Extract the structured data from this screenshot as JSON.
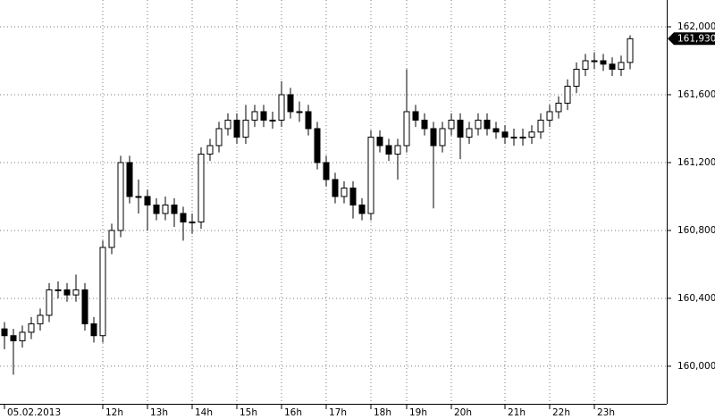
{
  "chart_data": {
    "type": "candlestick",
    "categories": [
      "05.02.2013",
      null,
      null,
      null,
      null,
      null,
      null,
      null,
      null,
      null,
      null,
      "12h",
      null,
      null,
      null,
      null,
      "13h",
      null,
      null,
      null,
      null,
      "14h",
      null,
      null,
      null,
      null,
      "15h",
      null,
      null,
      null,
      null,
      "16h",
      null,
      null,
      null,
      null,
      "17h",
      null,
      null,
      null,
      null,
      "18h",
      null,
      null,
      null,
      "19h",
      null,
      null,
      null,
      null,
      "20h",
      null,
      null,
      null,
      null,
      null,
      "21h",
      null,
      null,
      null,
      null,
      "22h",
      null,
      null,
      null,
      null,
      "23h",
      null,
      null,
      null,
      null
    ],
    "open": [
      160220,
      160180,
      160150,
      160200,
      160250,
      160300,
      160450,
      160450,
      160420,
      160450,
      160250,
      160180,
      160700,
      160800,
      161200,
      161000,
      161000,
      160950,
      160900,
      160950,
      160900,
      160850,
      160850,
      161250,
      161300,
      161400,
      161450,
      161350,
      161450,
      161500,
      161450,
      161450,
      161600,
      161500,
      161500,
      161400,
      161200,
      161100,
      161000,
      161050,
      160950,
      160900,
      161350,
      161300,
      161250,
      161300,
      161500,
      161450,
      161400,
      161300,
      161400,
      161450,
      161350,
      161400,
      161450,
      161400,
      161380,
      161350,
      161350,
      161350,
      161380,
      161450,
      161500,
      161550,
      161650,
      161750,
      161800,
      161800,
      161780,
      161750,
      161790
    ],
    "high": [
      160260,
      160220,
      160240,
      160290,
      160340,
      160490,
      160500,
      160490,
      160540,
      160490,
      160290,
      160740,
      160840,
      161240,
      161240,
      161100,
      161040,
      160990,
      161000,
      160990,
      160940,
      160900,
      161290,
      161340,
      161440,
      161490,
      161490,
      161540,
      161540,
      161540,
      161500,
      161680,
      161640,
      161560,
      161540,
      161440,
      161240,
      161140,
      161090,
      161090,
      160990,
      161390,
      161390,
      161340,
      161340,
      161750,
      161540,
      161490,
      161440,
      161440,
      161490,
      161490,
      161440,
      161490,
      161490,
      161440,
      161420,
      161400,
      161400,
      161420,
      161490,
      161540,
      161590,
      161690,
      161790,
      161840,
      161850,
      161840,
      161820,
      161830,
      161950
    ],
    "low": [
      160100,
      159950,
      160110,
      160160,
      160210,
      160260,
      160400,
      160380,
      160380,
      160210,
      160140,
      160140,
      160660,
      160760,
      160960,
      160900,
      160800,
      160860,
      160860,
      160820,
      160740,
      160780,
      160810,
      161210,
      161260,
      161360,
      161310,
      161310,
      161410,
      161410,
      161400,
      161410,
      161460,
      161440,
      161360,
      161160,
      161060,
      160960,
      160960,
      160870,
      160860,
      160860,
      161260,
      161210,
      161100,
      161260,
      161410,
      161360,
      160930,
      161260,
      161360,
      161220,
      161310,
      161360,
      161360,
      161340,
      161310,
      161300,
      161300,
      161310,
      161340,
      161410,
      161460,
      161510,
      161610,
      161710,
      161750,
      161740,
      161710,
      161710,
      161750
    ],
    "close": [
      160180,
      160150,
      160200,
      160250,
      160300,
      160450,
      160450,
      160420,
      160450,
      160250,
      160180,
      160700,
      160800,
      161200,
      161000,
      161000,
      160950,
      160900,
      160950,
      160900,
      160850,
      160850,
      161250,
      161300,
      161400,
      161450,
      161350,
      161450,
      161500,
      161450,
      161450,
      161600,
      161500,
      161500,
      161400,
      161200,
      161100,
      161000,
      161050,
      160950,
      160900,
      161350,
      161300,
      161250,
      161300,
      161500,
      161450,
      161400,
      161300,
      161400,
      161450,
      161350,
      161400,
      161450,
      161400,
      161380,
      161350,
      161350,
      161350,
      161380,
      161450,
      161500,
      161550,
      161650,
      161750,
      161800,
      161800,
      161780,
      161750,
      161790,
      161930
    ],
    "up_color": "#ffffff",
    "down_color": "#000000",
    "ylim": [
      159789,
      162158
    ],
    "yticks": [
      {
        "value": 160000,
        "label": "160,000"
      },
      {
        "value": 160400,
        "label": "160,400"
      },
      {
        "value": 160800,
        "label": "160,800"
      },
      {
        "value": 161200,
        "label": "161,200"
      },
      {
        "value": 161600,
        "label": "161,600"
      },
      {
        "value": 162000,
        "label": "162,000"
      }
    ],
    "grid": true,
    "last_price": {
      "value": 161930,
      "label": "161,930"
    }
  }
}
